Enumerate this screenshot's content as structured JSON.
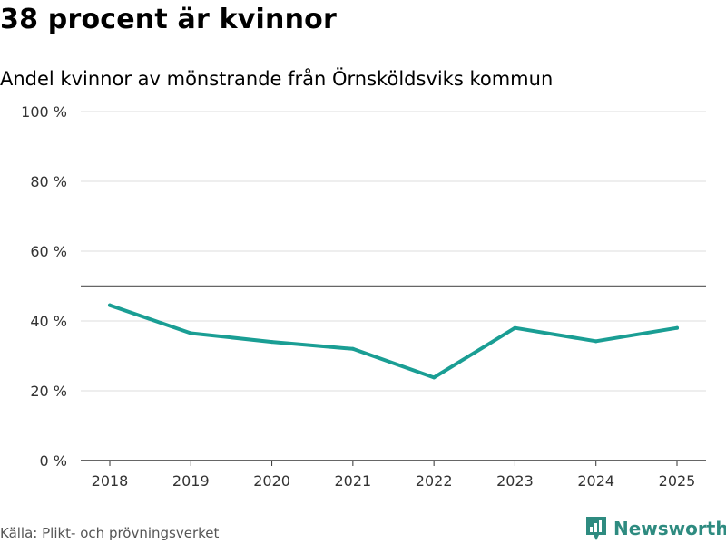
{
  "header": {
    "title": "38 procent är kvinnor",
    "subtitle": "Andel kvinnor av mönstrande från Örnsköldsviks kommun"
  },
  "footer": {
    "source": "Källa: Plikt- och prövningsverket",
    "brand": "Newsworthy"
  },
  "colors": {
    "line": "#1a9e94",
    "reference": "#666666",
    "grid": "#dddddd",
    "axis": "#333333",
    "brand": "#2e8b80"
  },
  "icons": {
    "logo": "newsworthy-logo-icon"
  },
  "chart_data": {
    "type": "line",
    "title": "38 procent är kvinnor",
    "subtitle": "Andel kvinnor av mönstrande från Örnsköldsviks kommun",
    "xlabel": "",
    "ylabel": "",
    "x": [
      "2018",
      "2019",
      "2020",
      "2021",
      "2022",
      "2023",
      "2024",
      "2025"
    ],
    "series": [
      {
        "name": "Andel kvinnor",
        "values": [
          44.5,
          36.5,
          34,
          32,
          23.8,
          38,
          34.2,
          38
        ]
      }
    ],
    "ylim": [
      0,
      100
    ],
    "yticks": [
      0,
      20,
      40,
      60,
      80,
      100
    ],
    "ytick_labels": [
      "0 %",
      "20 %",
      "40 %",
      "60 %",
      "80 %",
      "100 %"
    ],
    "reference_line": 50,
    "grid": true,
    "legend": "none"
  }
}
